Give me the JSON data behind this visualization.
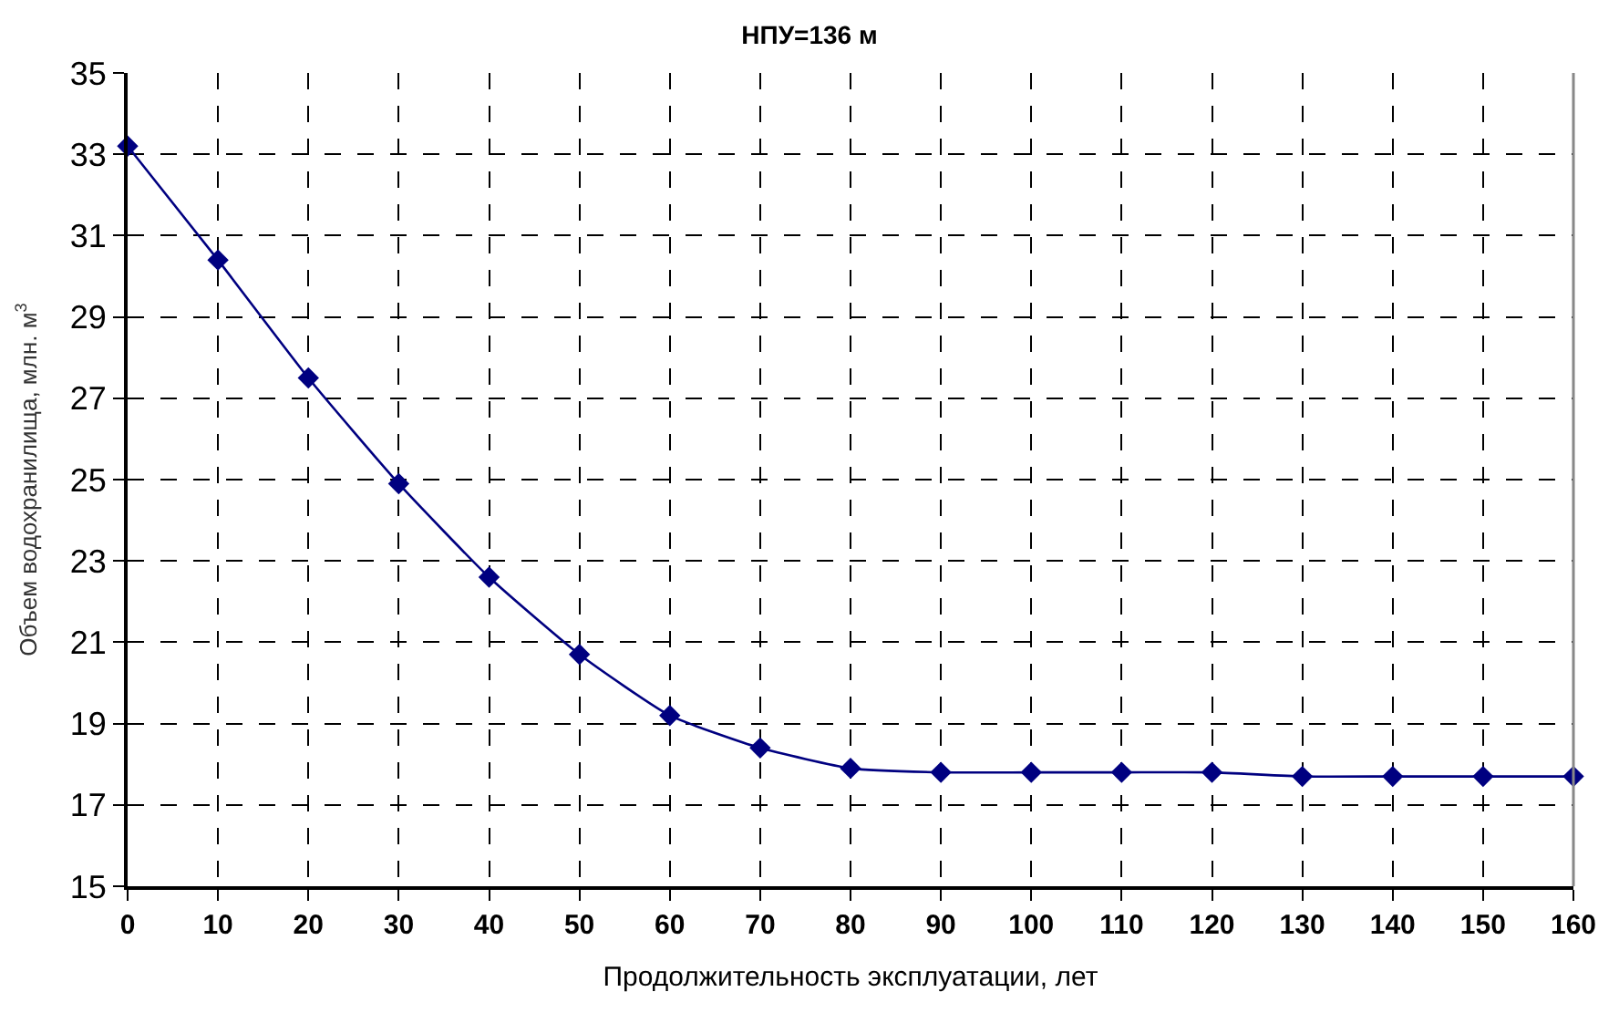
{
  "chart_data": {
    "type": "line",
    "title": "НПУ=136 м",
    "xlabel": "Продолжительность эксплуатации, лет",
    "ylabel": "Объем водохранилища, млн. м$^{3}$",
    "x": [
      0,
      10,
      20,
      30,
      40,
      50,
      60,
      70,
      80,
      90,
      100,
      110,
      120,
      130,
      140,
      150,
      160
    ],
    "series": [
      {
        "color": "#000080",
        "values": [
          33.2,
          30.4,
          27.5,
          24.9,
          22.6,
          20.7,
          19.2,
          18.4,
          17.9,
          17.8,
          17.8,
          17.8,
          17.8,
          17.7,
          17.7,
          17.7,
          17.7
        ]
      }
    ],
    "xlim": [
      0,
      160
    ],
    "xticks": [
      0,
      10,
      20,
      30,
      40,
      50,
      60,
      70,
      80,
      90,
      100,
      110,
      120,
      130,
      140,
      150,
      160
    ],
    "ylim": [
      15,
      35
    ],
    "yticks": [
      15,
      17,
      19,
      21,
      23,
      25,
      27,
      29,
      31,
      33,
      35
    ],
    "grid": true,
    "marker": "diamond",
    "line_style": "solid"
  }
}
